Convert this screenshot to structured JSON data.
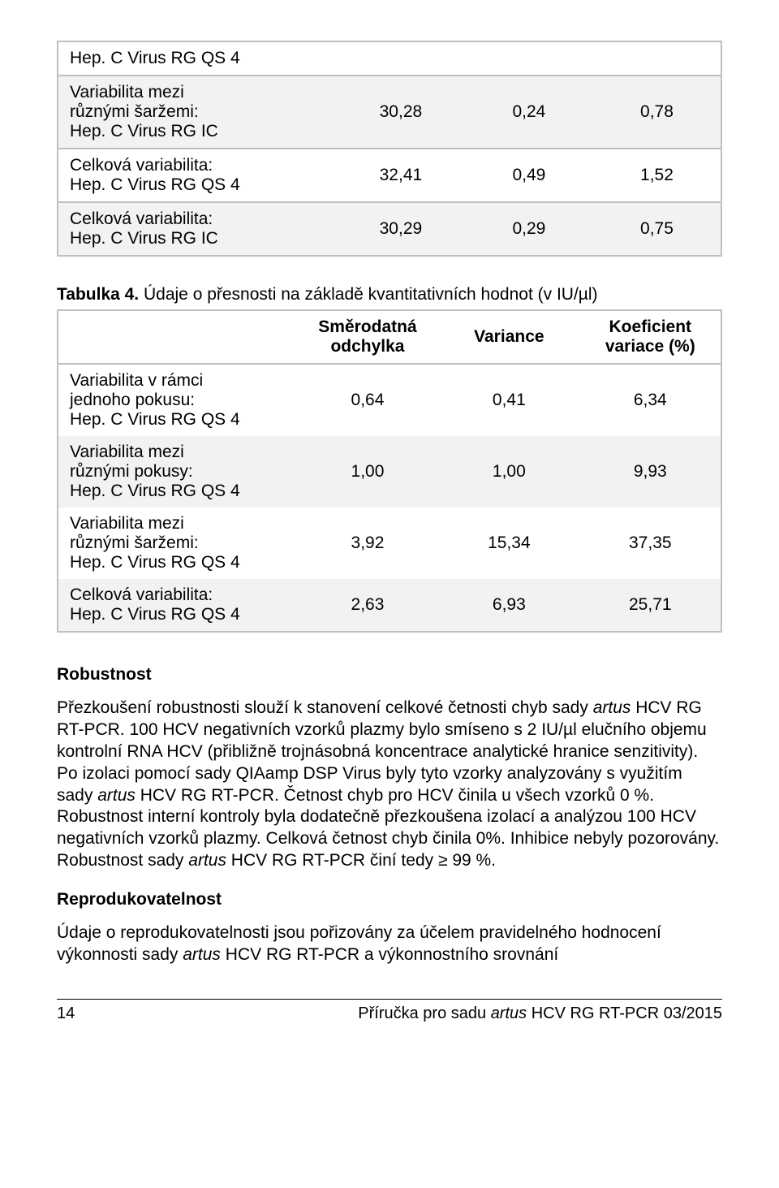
{
  "table1": {
    "rows": [
      {
        "label": "Hep. C Virus RG QS 4",
        "v1": "",
        "v2": "",
        "v3": "",
        "alt": false,
        "single": true
      },
      {
        "label_a": "Variabilita mezi",
        "label_b": "různými šaržemi:",
        "label_c": "Hep. C Virus RG IC",
        "v1": "30,28",
        "v2": "0,24",
        "v3": "0,78",
        "alt": true
      },
      {
        "label_a": "Celková variabilita:",
        "label_b": "Hep. C Virus RG QS 4",
        "v1": "32,41",
        "v2": "0,49",
        "v3": "1,52",
        "alt": false
      },
      {
        "label_a": "Celková variabilita:",
        "label_b": "Hep. C Virus RG IC",
        "v1": "30,29",
        "v2": "0,29",
        "v3": "0,75",
        "alt": true
      }
    ]
  },
  "caption": {
    "bold": "Tabulka 4.",
    "rest": " Údaje o přesnosti na základě kvantitativních hodnot (v IU/µl)"
  },
  "table2": {
    "headers": [
      "",
      "Směrodatná odchylka",
      "Variance",
      "Koeficient variace (%)"
    ],
    "rows": [
      {
        "label_a": "Variabilita v rámci",
        "label_b": "jednoho pokusu:",
        "label_c": "Hep. C Virus RG QS 4",
        "v1": "0,64",
        "v2": "0,41",
        "v3": "6,34",
        "alt": false
      },
      {
        "label_a": "Variabilita mezi",
        "label_b": "různými pokusy:",
        "label_c": "Hep. C Virus RG QS 4",
        "v1": "1,00",
        "v2": "1,00",
        "v3": "9,93",
        "alt": true
      },
      {
        "label_a": "Variabilita mezi",
        "label_b": "různými šaržemi:",
        "label_c": "Hep. C Virus RG QS 4",
        "v1": "3,92",
        "v2": "15,34",
        "v3": "37,35",
        "alt": false
      },
      {
        "label_a": "Celková variabilita:",
        "label_b": "Hep. C Virus RG QS 4",
        "v1": "2,63",
        "v2": "6,93",
        "v3": "25,71",
        "alt": true
      }
    ]
  },
  "robust": {
    "title": "Robustnost",
    "p_before_i1": "Přezkoušení robustnosti slouží k stanovení celkové četnosti chyb sady ",
    "i1": "artus",
    "p_mid1": " HCV RG RT-PCR. 100 HCV negativních vzorků plazmy bylo smíseno s 2 IU/µl elučního objemu kontrolní RNA HCV (přibližně trojnásobná koncentrace analytické hranice senzitivity). Po izolaci pomocí sady QIAamp DSP Virus byly tyto vzorky analyzovány s využitím sady ",
    "i2": "artus",
    "p_mid2": " HCV RG RT-PCR. Četnost chyb pro HCV činila u všech vzorků 0 %. Robustnost interní kontroly byla dodatečně přezkoušena izolací a analýzou 100 HCV negativních vzorků plazmy. Celková četnost chyb činila 0%. Inhibice nebyly pozorovány. Robustnost sady ",
    "i3": "artus",
    "p_after": " HCV RG RT-PCR činí tedy ≥ 99 %."
  },
  "repro": {
    "title": "Reprodukovatelnost",
    "p_before": "Údaje o reprodukovatelnosti jsou pořizovány za účelem pravidelného hodnocení výkonnosti sady ",
    "i1": "artus",
    "p_after": " HCV RG RT-PCR a výkonnostního srovnání"
  },
  "footer": {
    "page": "14",
    "prefix": "Příručka pro sadu ",
    "ital": "artus",
    "suffix": " HCV RG RT-PCR   03/2015"
  }
}
